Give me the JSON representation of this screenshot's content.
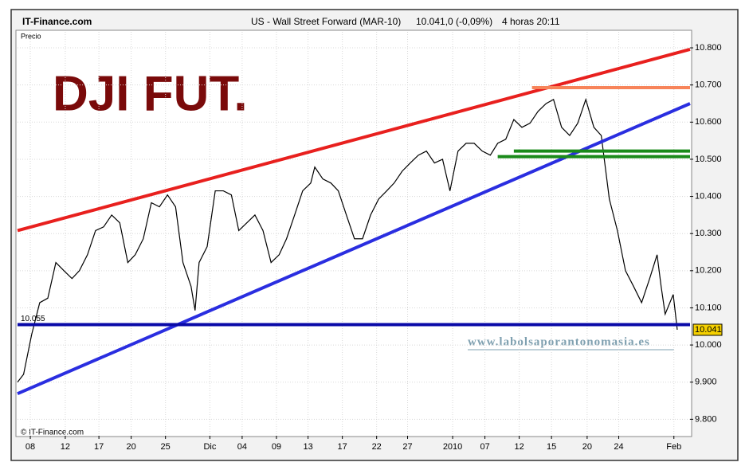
{
  "chart_data": {
    "type": "line",
    "site": "IT-Finance.com",
    "title": "US - Wall Street Forward (MAR-10)",
    "quote": "10.041,0 (-0,09%)",
    "timeframe": "4 horas  20:11",
    "y_label": "Precio",
    "annotation": "DJI FUT.",
    "watermark": "www.labolsaporantonomasia.es",
    "copyright": "© IT-Finance.com",
    "xlim": [
      0,
      100
    ],
    "xticks": [
      {
        "value": 1.9,
        "label": "08"
      },
      {
        "value": 7.1,
        "label": "12"
      },
      {
        "value": 12.1,
        "label": "17"
      },
      {
        "value": 16.9,
        "label": "20"
      },
      {
        "value": 22.0,
        "label": "25"
      },
      {
        "value": 28.6,
        "label": "Dic"
      },
      {
        "value": 33.4,
        "label": "04"
      },
      {
        "value": 38.5,
        "label": "09"
      },
      {
        "value": 43.2,
        "label": "13"
      },
      {
        "value": 48.3,
        "label": "17"
      },
      {
        "value": 53.4,
        "label": "22"
      },
      {
        "value": 58.0,
        "label": "27"
      },
      {
        "value": 64.7,
        "label": "2010"
      },
      {
        "value": 69.5,
        "label": "07"
      },
      {
        "value": 74.6,
        "label": "12"
      },
      {
        "value": 79.4,
        "label": "15"
      },
      {
        "value": 84.7,
        "label": "20"
      },
      {
        "value": 89.4,
        "label": "24"
      },
      {
        "value": 97.6,
        "label": "Feb"
      }
    ],
    "ylim": [
      9760,
      10843
    ],
    "yticks": [
      {
        "value": 9800,
        "label": "9.800"
      },
      {
        "value": 9900,
        "label": "9.900"
      },
      {
        "value": 10000,
        "label": "10.000"
      },
      {
        "value": 10100,
        "label": "10.100"
      },
      {
        "value": 10200,
        "label": "10.200"
      },
      {
        "value": 10300,
        "label": "10.300"
      },
      {
        "value": 10400,
        "label": "10.400"
      },
      {
        "value": 10500,
        "label": "10.500"
      },
      {
        "value": 10600,
        "label": "10.600"
      },
      {
        "value": 10700,
        "label": "10.700"
      },
      {
        "value": 10800,
        "label": "10.800"
      }
    ],
    "grid": true,
    "series": [
      {
        "color": "#000000",
        "x": [
          0,
          0.9,
          2.1,
          3.3,
          4.5,
          5.7,
          6.9,
          8.1,
          9.2,
          10.4,
          11.6,
          12.8,
          14.0,
          15.2,
          16.4,
          17.5,
          18.7,
          19.9,
          21.1,
          22.3,
          23.5,
          24.6,
          25.8,
          26.4,
          27.0,
          28.2,
          29.4,
          30.6,
          31.8,
          32.9,
          34.1,
          35.3,
          36.5,
          37.7,
          38.9,
          40.0,
          41.2,
          42.4,
          43.6,
          44.2,
          45.4,
          46.6,
          47.7,
          48.9,
          50.1,
          51.3,
          52.5,
          53.7,
          54.9,
          56.0,
          57.2,
          58.4,
          59.6,
          60.8,
          62.0,
          63.2,
          64.3,
          65.5,
          66.7,
          67.9,
          69.1,
          70.3,
          71.4,
          72.6,
          73.8,
          75.0,
          76.2,
          77.4,
          78.6,
          79.7,
          80.9,
          82.1,
          83.3,
          84.5,
          85.7,
          86.8,
          88.0,
          89.2,
          90.4,
          91.6,
          92.8,
          94.0,
          95.1,
          95.7,
          96.3,
          97.5,
          98.1
        ],
        "values": [
          9900,
          9921,
          10028,
          10114,
          10126,
          10222,
          10200,
          10179,
          10200,
          10243,
          10308,
          10318,
          10350,
          10329,
          10222,
          10243,
          10286,
          10383,
          10372,
          10404,
          10372,
          10222,
          10158,
          10093,
          10222,
          10265,
          10415,
          10415,
          10404,
          10308,
          10329,
          10350,
          10308,
          10222,
          10243,
          10286,
          10350,
          10415,
          10436,
          10479,
          10447,
          10436,
          10415,
          10350,
          10286,
          10286,
          10350,
          10393,
          10415,
          10436,
          10468,
          10490,
          10511,
          10522,
          10490,
          10500,
          10415,
          10522,
          10543,
          10543,
          10522,
          10511,
          10543,
          10554,
          10607,
          10586,
          10597,
          10629,
          10650,
          10661,
          10586,
          10564,
          10597,
          10661,
          10586,
          10564,
          10393,
          10308,
          10200,
          10158,
          10114,
          10179,
          10243,
          10158,
          10083,
          10136,
          10041
        ]
      }
    ],
    "last_price": {
      "value": 10041,
      "label": "10.041"
    },
    "level": {
      "value": 10055,
      "label": "10.055"
    },
    "lines": [
      {
        "color": "#e8201e",
        "points": [
          [
            0,
            10308
          ],
          [
            100,
            10796
          ]
        ]
      },
      {
        "color": "#2a2ee0",
        "points": [
          [
            0,
            9869
          ],
          [
            100,
            10650
          ]
        ]
      },
      {
        "color": "#f7845a",
        "points": [
          [
            76.5,
            10693
          ],
          [
            100,
            10693
          ]
        ]
      },
      {
        "color": "#1a8a1a",
        "points": [
          [
            73.8,
            10522
          ],
          [
            100,
            10522
          ]
        ]
      },
      {
        "color": "#1a8a1a",
        "points": [
          [
            71.4,
            10507
          ],
          [
            100,
            10507
          ]
        ]
      },
      {
        "color": "#0a0aa8",
        "points": [
          [
            0,
            10055
          ],
          [
            100,
            10055
          ]
        ]
      }
    ]
  }
}
